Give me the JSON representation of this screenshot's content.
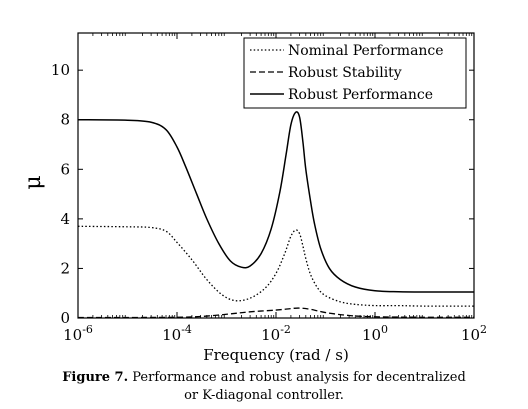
{
  "chart_data": {
    "type": "line",
    "xlabel": "Frequency (rad / s)",
    "ylabel": "μ",
    "xscale": "log",
    "xlim": [
      1e-06,
      100
    ],
    "ylim": [
      0,
      11.5
    ],
    "x_ticks": [
      {
        "value": 1e-06,
        "base": "10",
        "exp": "-6"
      },
      {
        "value": 0.0001,
        "base": "10",
        "exp": "-4"
      },
      {
        "value": 0.01,
        "base": "10",
        "exp": "-2"
      },
      {
        "value": 1,
        "base": "10",
        "exp": "0"
      },
      {
        "value": 100,
        "base": "10",
        "exp": "2"
      }
    ],
    "y_ticks": [
      0,
      2,
      4,
      6,
      8,
      10
    ],
    "grid": false,
    "legend_position": "top-right",
    "series": [
      {
        "name": "Nominal Performance",
        "style": "dotted",
        "x": [
          1e-06,
          1e-05,
          3e-05,
          6e-05,
          0.0001,
          0.0002,
          0.0004,
          0.0008,
          0.0015,
          0.003,
          0.006,
          0.01,
          0.015,
          0.02,
          0.025,
          0.03,
          0.035,
          0.04,
          0.05,
          0.07,
          0.1,
          0.2,
          0.4,
          1,
          3,
          10,
          100
        ],
        "y": [
          3.7,
          3.68,
          3.65,
          3.5,
          3.05,
          2.35,
          1.55,
          0.95,
          0.7,
          0.8,
          1.2,
          1.8,
          2.6,
          3.3,
          3.55,
          3.4,
          2.9,
          2.4,
          1.75,
          1.2,
          0.9,
          0.65,
          0.55,
          0.5,
          0.5,
          0.48,
          0.48
        ]
      },
      {
        "name": "Robust Stability",
        "style": "dashed",
        "x": [
          1e-06,
          1e-05,
          0.0001,
          0.0003,
          0.001,
          0.003,
          0.01,
          0.02,
          0.03,
          0.05,
          0.1,
          0.3,
          1,
          10,
          100
        ],
        "y": [
          0.02,
          0.02,
          0.03,
          0.06,
          0.15,
          0.25,
          0.32,
          0.38,
          0.4,
          0.35,
          0.22,
          0.1,
          0.05,
          0.03,
          0.03
        ]
      },
      {
        "name": "Robust Performance",
        "style": "solid",
        "x": [
          1e-06,
          1e-05,
          3e-05,
          6e-05,
          0.0001,
          0.00015,
          0.00025,
          0.0004,
          0.0007,
          0.0012,
          0.002,
          0.003,
          0.005,
          0.008,
          0.012,
          0.016,
          0.02,
          0.025,
          0.03,
          0.035,
          0.04,
          0.05,
          0.06,
          0.08,
          0.12,
          0.2,
          0.4,
          1,
          3,
          10,
          100
        ],
        "y": [
          8.0,
          7.98,
          7.9,
          7.6,
          6.9,
          6.1,
          5.0,
          4.0,
          3.0,
          2.3,
          2.05,
          2.1,
          2.6,
          3.6,
          5.1,
          6.6,
          7.8,
          8.3,
          8.1,
          7.1,
          6.0,
          4.7,
          3.8,
          2.8,
          2.0,
          1.55,
          1.25,
          1.1,
          1.06,
          1.05,
          1.05
        ]
      }
    ]
  },
  "caption": {
    "figure_label": "Figure 7.",
    "line1": " Performance and robust analysis for decentralized",
    "line2": "or K-diagonal controller."
  }
}
